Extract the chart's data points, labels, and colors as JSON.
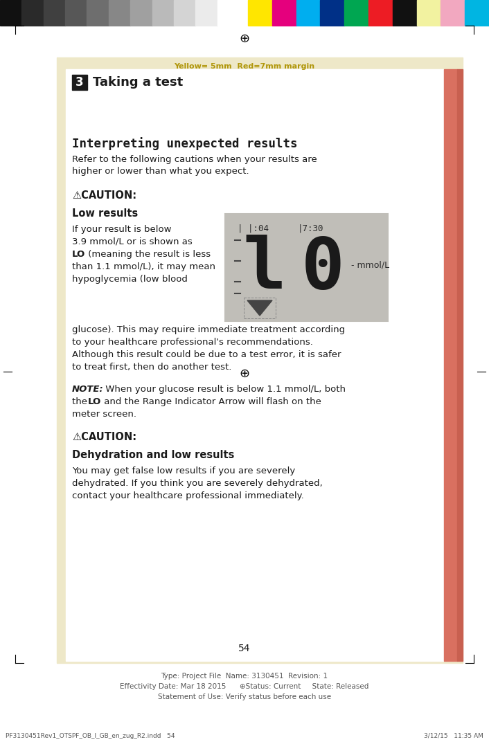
{
  "bg_cream": "#EEE8C8",
  "text_black": "#1a1a1a",
  "text_gray": "#666666",
  "yellow_margin_text": "Yellow= 5mm  Red=7mm margin",
  "section_num": "3",
  "section_title": "Taking a test",
  "heading": "Interpreting unexpected results",
  "intro_line1": "Refer to the following cautions when your results are",
  "intro_line2": "higher or lower than what you expect.",
  "caution1_label": "⚠CAUTION:",
  "caution1_title": "Low results",
  "note_bold": "NOTE:",
  "note_rest": " When your glucose result is below 1.1 mmol/L, both",
  "note_line2a": "the ",
  "note_line2b": "LO",
  "note_line2c": " and the Range Indicator Arrow will flash on the",
  "note_line3": "meter screen.",
  "caution2_label": "⚠CAUTION:",
  "caution2_title": "Dehydration and low results",
  "caution2_para_l1": "You may get false low results if you are severely",
  "caution2_para_l2": "dehydrated. If you think you are severely dehydrated,",
  "caution2_para_l3": "contact your healthcare professional immediately.",
  "page_num": "54",
  "footer1": "Type: Project File  Name: 3130451  Revision: 1",
  "footer2": "Effectivity Date: Mar 18 2015      ⊕Status: Current     State: Released",
  "footer3": "Statement of Use: Verify status before each use",
  "footer_left": "PF3130451Rev1_OTSPF_OB_I_GB_en_zug_R2.indd   54",
  "footer_right": "3/12/15   11:35 AM",
  "display_bg": "#C0BEB8",
  "colorbar_grays": [
    "#111111",
    "#2a2a2a",
    "#404040",
    "#575757",
    "#6e6e6e",
    "#878787",
    "#a0a0a0",
    "#bababa",
    "#d4d4d4",
    "#ebebeb",
    "#ffffff"
  ],
  "colorbar_colors": [
    "#FFE600",
    "#E5007D",
    "#00AEEF",
    "#003087",
    "#00A651",
    "#ED1C24",
    "#111111",
    "#F2F2A0",
    "#F2A8C0",
    "#00B5E2"
  ],
  "red_bar_color": "#D97060",
  "red_bar_color2": "#C86050",
  "page_white": "#FFFFFF"
}
